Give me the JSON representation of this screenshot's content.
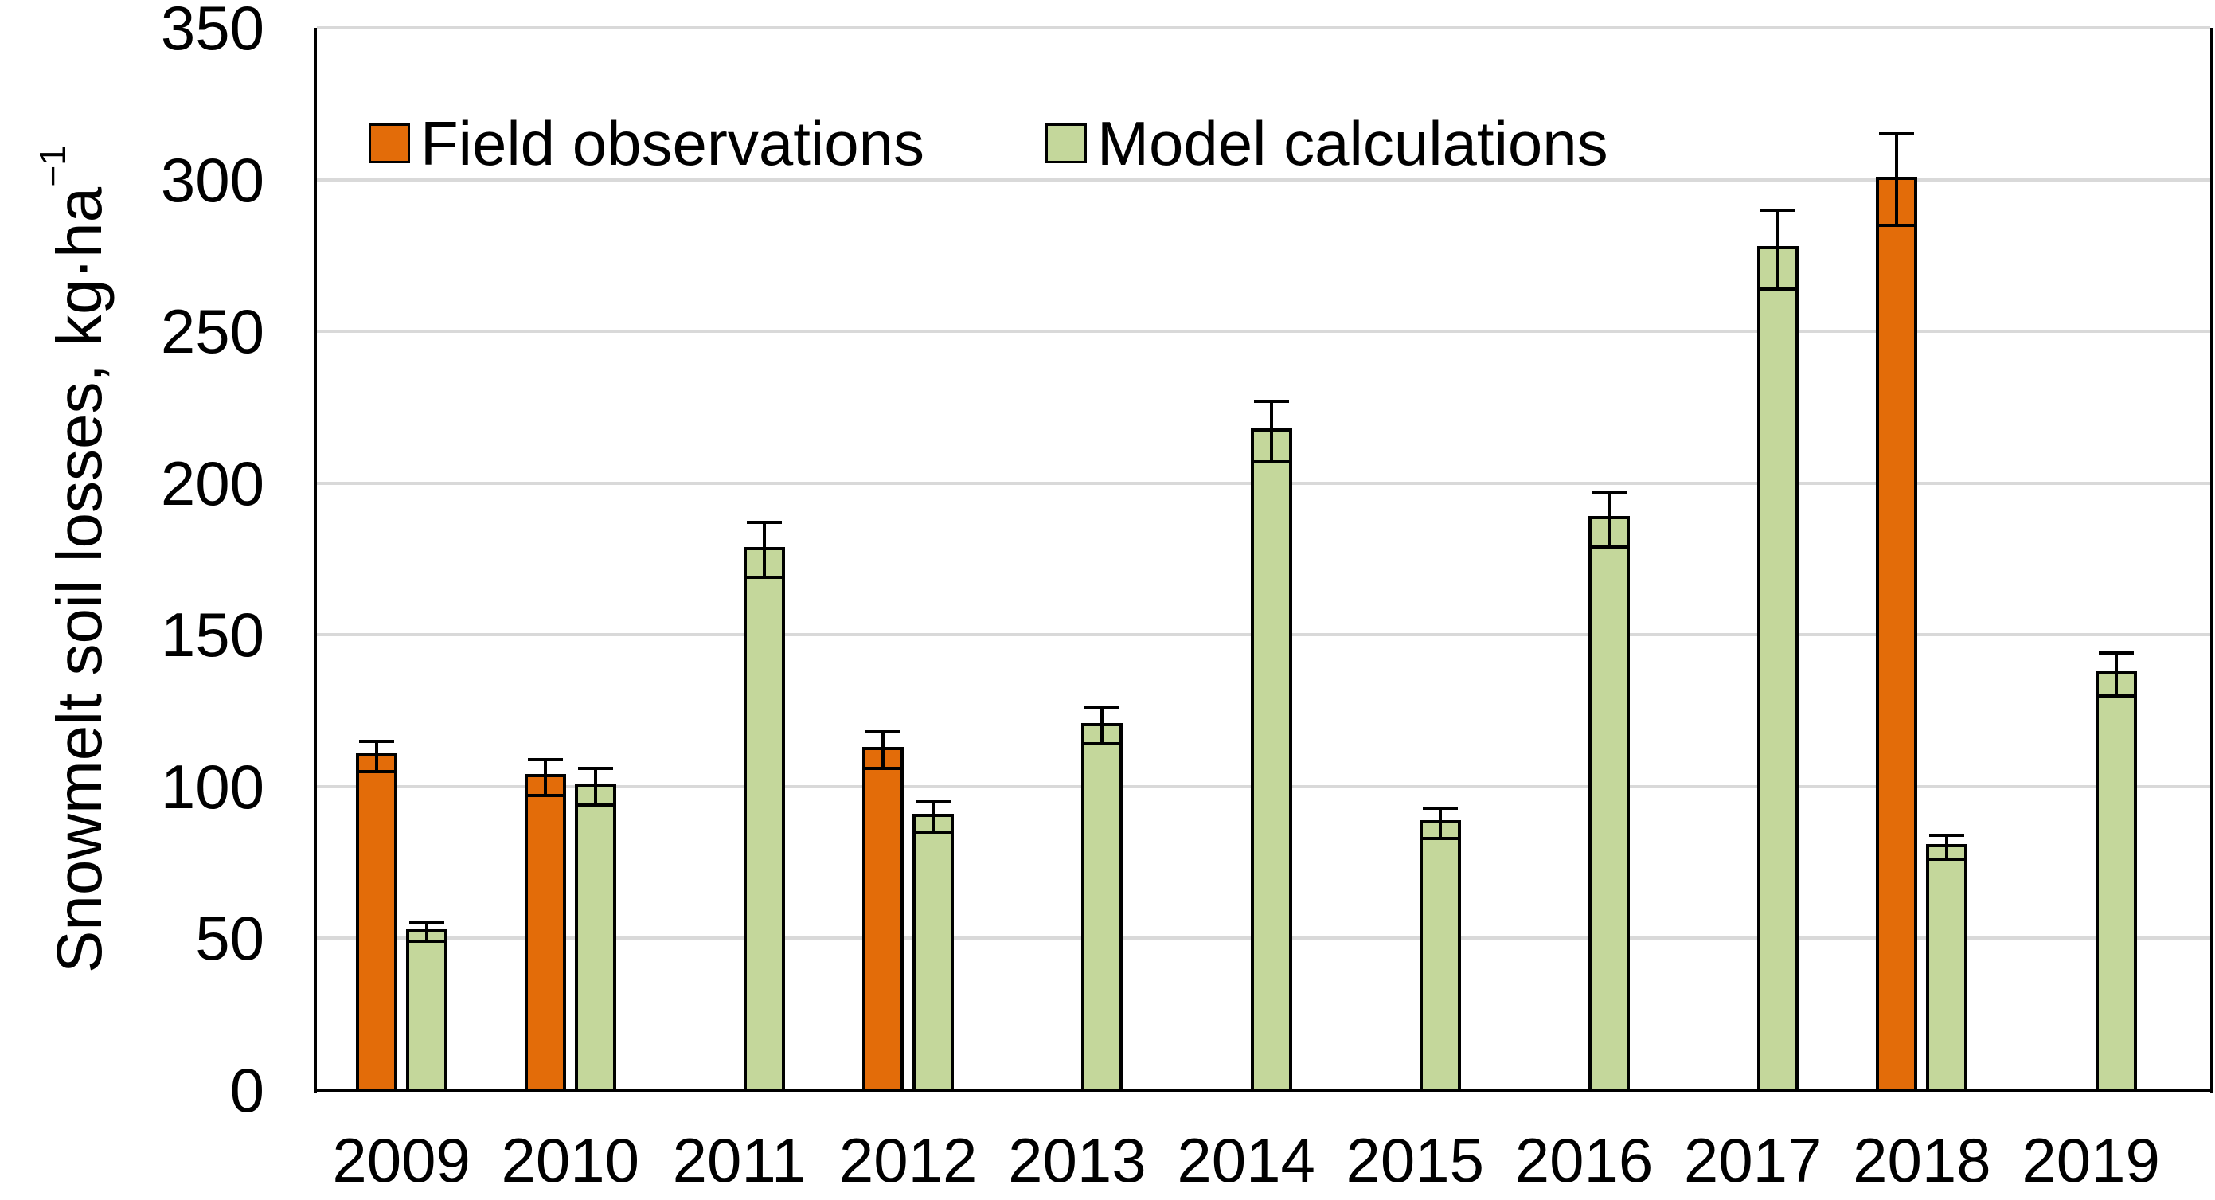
{
  "chart_data": {
    "type": "bar",
    "title": "",
    "categories": [
      "2009",
      "2010",
      "2011",
      "2012",
      "2013",
      "2014",
      "2015",
      "2016",
      "2017",
      "2018",
      "2019"
    ],
    "series": [
      {
        "name": "Field observations",
        "color": "#E36C09",
        "values": [
          110,
          103,
          null,
          112,
          null,
          null,
          null,
          null,
          null,
          300,
          null
        ],
        "errors": [
          5,
          6,
          null,
          6,
          null,
          null,
          null,
          null,
          null,
          15,
          null
        ]
      },
      {
        "name": "Model calculations",
        "color": "#C4D79B",
        "values": [
          52,
          100,
          178,
          90,
          120,
          217,
          88,
          188,
          277,
          80,
          137
        ],
        "errors": [
          3,
          6,
          9,
          5,
          6,
          10,
          5,
          9,
          13,
          4,
          7
        ]
      }
    ],
    "xlabel": "",
    "ylabel": "Snowmelt soil losses, kg·ha⁻¹",
    "ylabel_main": "Snowmelt soil losses, kg·ha",
    "ylabel_superscript": "−1",
    "ylim": [
      0,
      350
    ],
    "ytick_step": 50,
    "yticks": [
      0,
      50,
      100,
      150,
      200,
      250,
      300,
      350
    ],
    "grid": true,
    "grid_color": "#D9D9D9",
    "axis_color": "#000000",
    "bar_border_color": "#000000",
    "error_bar_color": "#000000",
    "background_color": "#FFFFFF",
    "legend_position": "top-left-inside"
  }
}
